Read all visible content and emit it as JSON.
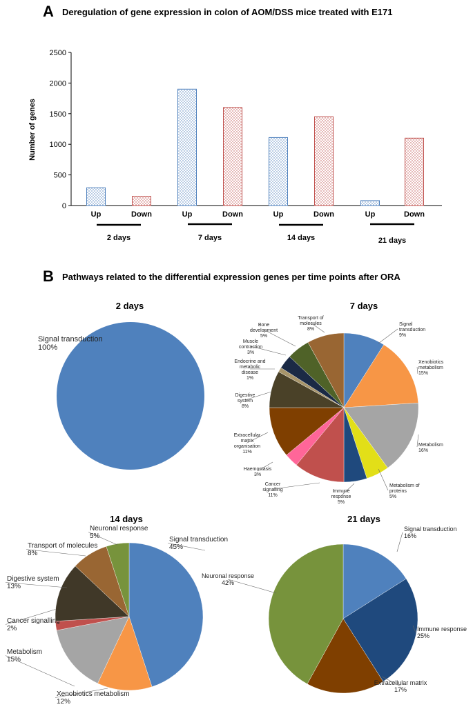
{
  "panel_a": {
    "letter": "A",
    "chart_data": {
      "type": "bar",
      "title": "Deregulation of gene expression in colon of AOM/DSS mice treated with E171",
      "xlabel": "",
      "ylabel": "Number of genes",
      "ylim": [
        0,
        2500
      ],
      "yticks": [
        "0",
        "500",
        "1000",
        "1500",
        "2000",
        "2500"
      ],
      "groups": [
        "2 days",
        "7 days",
        "14 days",
        "21 days"
      ],
      "bars": [
        {
          "group": "2 days",
          "label": "Up",
          "value": 290,
          "color": "#4f81bd"
        },
        {
          "group": "2 days",
          "label": "Down",
          "value": 150,
          "color": "#c0504d"
        },
        {
          "group": "7 days",
          "label": "Up",
          "value": 1900,
          "color": "#4f81bd"
        },
        {
          "group": "7 days",
          "label": "Down",
          "value": 1600,
          "color": "#c0504d"
        },
        {
          "group": "14 days",
          "label": "Up",
          "value": 1110,
          "color": "#4f81bd"
        },
        {
          "group": "14 days",
          "label": "Down",
          "value": 1450,
          "color": "#c0504d"
        },
        {
          "group": "21 days",
          "label": "Up",
          "value": 80,
          "color": "#4f81bd"
        },
        {
          "group": "21 days",
          "label": "Down",
          "value": 1100,
          "color": "#c0504d"
        }
      ]
    }
  },
  "panel_b": {
    "letter": "B",
    "title": "Pathways related to the differential expression genes per time points after ORA",
    "chart_data": [
      {
        "type": "pie",
        "title": "2 days",
        "slices": [
          {
            "name": "Signal transduction",
            "pct_label": "100%",
            "value": 100,
            "color": "#4f81bd"
          }
        ]
      },
      {
        "type": "pie",
        "title": "7 days",
        "slices": [
          {
            "name": "Signal transduction",
            "pct_label": "9%",
            "value": 9,
            "color": "#4f81bd"
          },
          {
            "name": "Xenobiotics metabolism",
            "pct_label": "15%",
            "value": 15,
            "color": "#f79646"
          },
          {
            "name": "Metabolism",
            "pct_label": "16%",
            "value": 16,
            "color": "#a5a5a5"
          },
          {
            "name": "Metabolism of proteins",
            "pct_label": "5%",
            "value": 5,
            "color": "#e2df18"
          },
          {
            "name": "Immune response",
            "pct_label": "5%",
            "value": 5,
            "color": "#1f497d"
          },
          {
            "name": "Cancer signalling",
            "pct_label": "11%",
            "value": 11,
            "color": "#c0504d"
          },
          {
            "name": "Haemostasis",
            "pct_label": "3%",
            "value": 3,
            "color": "#ff6699"
          },
          {
            "name": "Extracellular matrix organisation",
            "pct_label": "11%",
            "value": 11,
            "color": "#7f3f00"
          },
          {
            "name": "Digestive system",
            "pct_label": "8%",
            "value": 8,
            "color": "#4a4128"
          },
          {
            "name": "Endocrine and metabolic disease",
            "pct_label": "1%",
            "value": 1,
            "color": "#a8956a"
          },
          {
            "name": "Muscle contraction",
            "pct_label": "3%",
            "value": 3,
            "color": "#1b2a45"
          },
          {
            "name": "Bone development",
            "pct_label": "5%",
            "value": 5,
            "color": "#4f6228"
          },
          {
            "name": "Transport of molecules",
            "pct_label": "8%",
            "value": 8,
            "color": "#996633"
          }
        ]
      },
      {
        "type": "pie",
        "title": "14 days",
        "slices": [
          {
            "name": "Signal transduction",
            "pct_label": "45%",
            "value": 45,
            "color": "#4f81bd"
          },
          {
            "name": "Xenobiotics metabolism",
            "pct_label": "12%",
            "value": 12,
            "color": "#f79646"
          },
          {
            "name": "Metabolism",
            "pct_label": "15%",
            "value": 15,
            "color": "#a5a5a5"
          },
          {
            "name": "Cancer signalling",
            "pct_label": "2%",
            "value": 2,
            "color": "#c0504d"
          },
          {
            "name": "Digestive system",
            "pct_label": "13%",
            "value": 13,
            "color": "#403828"
          },
          {
            "name": "Transport of molecules",
            "pct_label": "8%",
            "value": 8,
            "color": "#996633"
          },
          {
            "name": "Neuronal response",
            "pct_label": "5%",
            "value": 5,
            "color": "#77933c"
          }
        ]
      },
      {
        "type": "pie",
        "title": "21 days",
        "slices": [
          {
            "name": "Signal transduction",
            "pct_label": "16%",
            "value": 16,
            "color": "#4f81bd"
          },
          {
            "name": "Immune response",
            "pct_label": "25%",
            "value": 25,
            "color": "#1f497d"
          },
          {
            "name": "Extracellular matrix",
            "pct_label": "17%",
            "value": 17,
            "color": "#7f3f00"
          },
          {
            "name": "Neuronal response",
            "pct_label": "42%",
            "value": 42,
            "color": "#77933c"
          }
        ]
      }
    ]
  }
}
